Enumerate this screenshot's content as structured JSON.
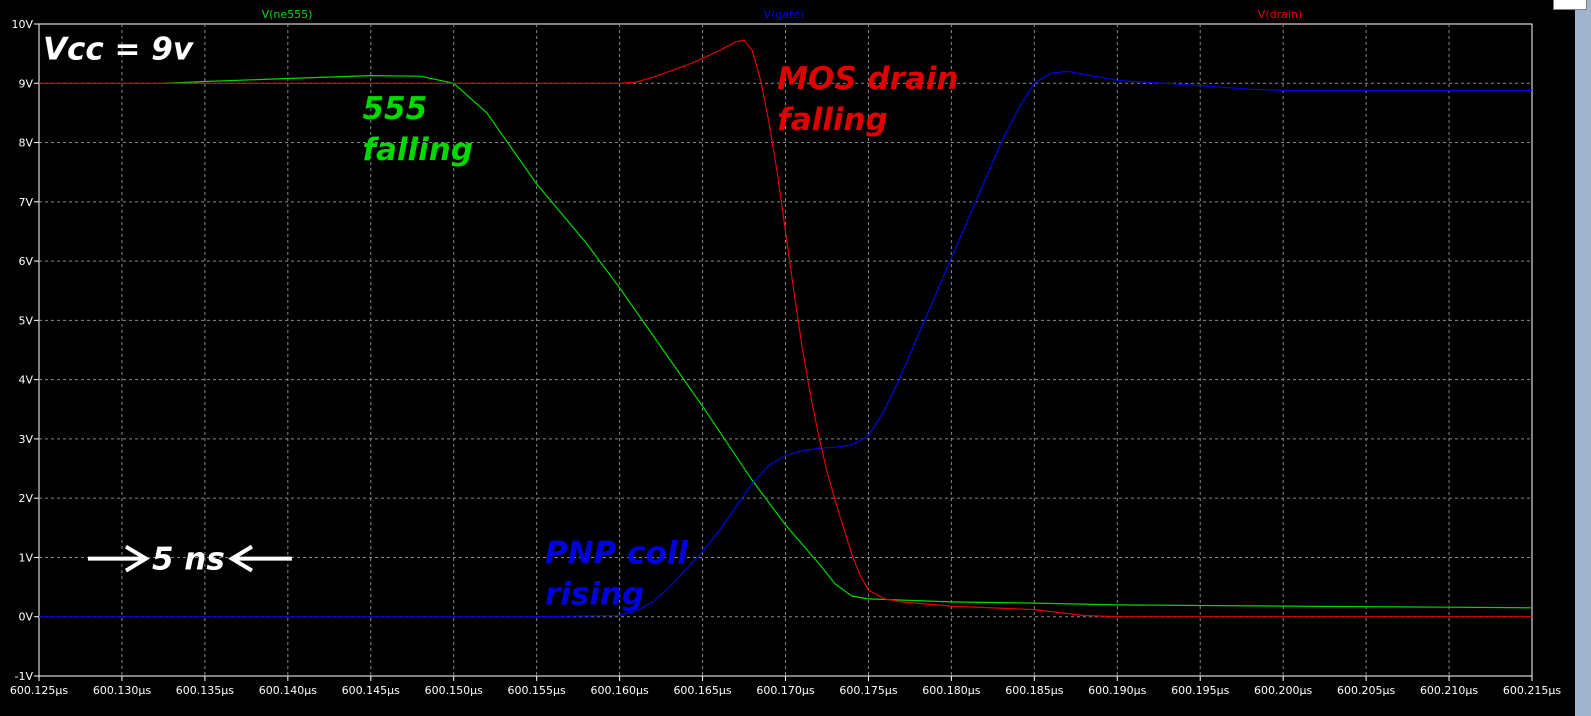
{
  "chart_data": {
    "type": "line",
    "xlabel": "",
    "ylabel": "",
    "x_ticks": [
      "600.125µs",
      "600.130µs",
      "600.135µs",
      "600.140µs",
      "600.145µs",
      "600.150µs",
      "600.155µs",
      "600.160µs",
      "600.165µs",
      "600.170µs",
      "600.175µs",
      "600.180µs",
      "600.185µs",
      "600.190µs",
      "600.195µs",
      "600.200µs",
      "600.205µs",
      "600.210µs",
      "600.215µs"
    ],
    "y_ticks": [
      "10V",
      "9V",
      "8V",
      "7V",
      "6V",
      "5V",
      "4V",
      "3V",
      "2V",
      "1V",
      "0V",
      "-1V"
    ],
    "xlim": [
      600.125,
      600.215
    ],
    "ylim": [
      -1,
      10
    ],
    "x_unit": "µs",
    "y_unit": "V",
    "grid": true,
    "background": "#000000",
    "series": [
      {
        "name": "V(ne555)",
        "color": "#00d800",
        "points": [
          [
            600.1325,
            9.0
          ],
          [
            600.135,
            9.03
          ],
          [
            600.14,
            9.08
          ],
          [
            600.145,
            9.13
          ],
          [
            600.148,
            9.12
          ],
          [
            600.15,
            9.0
          ],
          [
            600.152,
            8.5
          ],
          [
            600.155,
            7.3
          ],
          [
            600.158,
            6.3
          ],
          [
            600.16,
            5.55
          ],
          [
            600.163,
            4.35
          ],
          [
            600.165,
            3.55
          ],
          [
            600.168,
            2.3
          ],
          [
            600.17,
            1.55
          ],
          [
            600.172,
            0.9
          ],
          [
            600.173,
            0.55
          ],
          [
            600.174,
            0.35
          ],
          [
            600.175,
            0.3
          ],
          [
            600.18,
            0.25
          ],
          [
            600.185,
            0.23
          ],
          [
            600.19,
            0.2
          ],
          [
            600.195,
            0.19
          ],
          [
            600.2,
            0.18
          ],
          [
            600.205,
            0.17
          ],
          [
            600.21,
            0.16
          ],
          [
            600.215,
            0.15
          ]
        ]
      },
      {
        "name": "V(gate)",
        "color": "#0000e0",
        "points": [
          [
            600.125,
            0.0
          ],
          [
            600.135,
            0.0
          ],
          [
            600.145,
            0.0
          ],
          [
            600.15,
            0.0
          ],
          [
            600.155,
            0.0
          ],
          [
            600.16,
            0.02
          ],
          [
            600.161,
            0.1
          ],
          [
            600.162,
            0.25
          ],
          [
            600.163,
            0.5
          ],
          [
            600.164,
            0.8
          ],
          [
            600.165,
            1.1
          ],
          [
            600.166,
            1.45
          ],
          [
            600.167,
            1.85
          ],
          [
            600.168,
            2.25
          ],
          [
            600.169,
            2.55
          ],
          [
            600.17,
            2.72
          ],
          [
            600.171,
            2.8
          ],
          [
            600.172,
            2.84
          ],
          [
            600.173,
            2.86
          ],
          [
            600.174,
            2.9
          ],
          [
            600.175,
            3.05
          ],
          [
            600.176,
            3.5
          ],
          [
            600.177,
            4.1
          ],
          [
            600.178,
            4.75
          ],
          [
            600.179,
            5.4
          ],
          [
            600.18,
            6.05
          ],
          [
            600.181,
            6.7
          ],
          [
            600.182,
            7.35
          ],
          [
            600.183,
            8.0
          ],
          [
            600.184,
            8.55
          ],
          [
            600.185,
            9.0
          ],
          [
            600.186,
            9.17
          ],
          [
            600.187,
            9.2
          ],
          [
            600.188,
            9.15
          ],
          [
            600.19,
            9.05
          ],
          [
            600.195,
            8.96
          ],
          [
            600.198,
            8.9
          ],
          [
            600.2,
            8.88
          ],
          [
            600.205,
            8.88
          ],
          [
            600.21,
            8.88
          ],
          [
            600.215,
            8.88
          ]
        ]
      },
      {
        "name": "V(drain)",
        "color": "#e00000",
        "points": [
          [
            600.125,
            9.0
          ],
          [
            600.135,
            9.0
          ],
          [
            600.145,
            9.0
          ],
          [
            600.15,
            9.0
          ],
          [
            600.155,
            9.0
          ],
          [
            600.16,
            9.0
          ],
          [
            600.161,
            9.02
          ],
          [
            600.162,
            9.1
          ],
          [
            600.163,
            9.2
          ],
          [
            600.164,
            9.3
          ],
          [
            600.165,
            9.42
          ],
          [
            600.166,
            9.55
          ],
          [
            600.167,
            9.7
          ],
          [
            600.1675,
            9.73
          ],
          [
            600.168,
            9.55
          ],
          [
            600.1685,
            9.05
          ],
          [
            600.169,
            8.35
          ],
          [
            600.1695,
            7.5
          ],
          [
            600.17,
            6.5
          ],
          [
            600.1705,
            5.5
          ],
          [
            600.171,
            4.55
          ],
          [
            600.1715,
            3.75
          ],
          [
            600.172,
            3.05
          ],
          [
            600.1725,
            2.45
          ],
          [
            600.173,
            1.95
          ],
          [
            600.1735,
            1.5
          ],
          [
            600.174,
            1.05
          ],
          [
            600.1745,
            0.7
          ],
          [
            600.175,
            0.45
          ],
          [
            600.176,
            0.3
          ],
          [
            600.177,
            0.25
          ],
          [
            600.18,
            0.18
          ],
          [
            600.185,
            0.12
          ],
          [
            600.188,
            0.02
          ],
          [
            600.19,
            0.0
          ],
          [
            600.2,
            0.0
          ],
          [
            600.215,
            0.0
          ]
        ]
      }
    ],
    "annotations": [
      {
        "key": "vcc",
        "lines": [
          "Vcc = 9v"
        ],
        "color": "#ffffff",
        "x": 600.125,
        "y": 9.4
      },
      {
        "key": "ne555",
        "lines": [
          "555",
          "falling"
        ],
        "color": "#00d800",
        "x": 600.1445,
        "y": 8.4
      },
      {
        "key": "drain",
        "lines": [
          "MOS drain",
          "falling"
        ],
        "color": "#e00000",
        "x": 600.1695,
        "y": 8.9
      },
      {
        "key": "gate",
        "lines": [
          "PNP coll",
          "rising"
        ],
        "color": "#0000e0",
        "x": 600.1555,
        "y": 0.9
      },
      {
        "key": "scale",
        "lines": [
          "5 ns"
        ],
        "color": "#ffffff",
        "x": 600.13,
        "y": 0.8
      }
    ]
  }
}
